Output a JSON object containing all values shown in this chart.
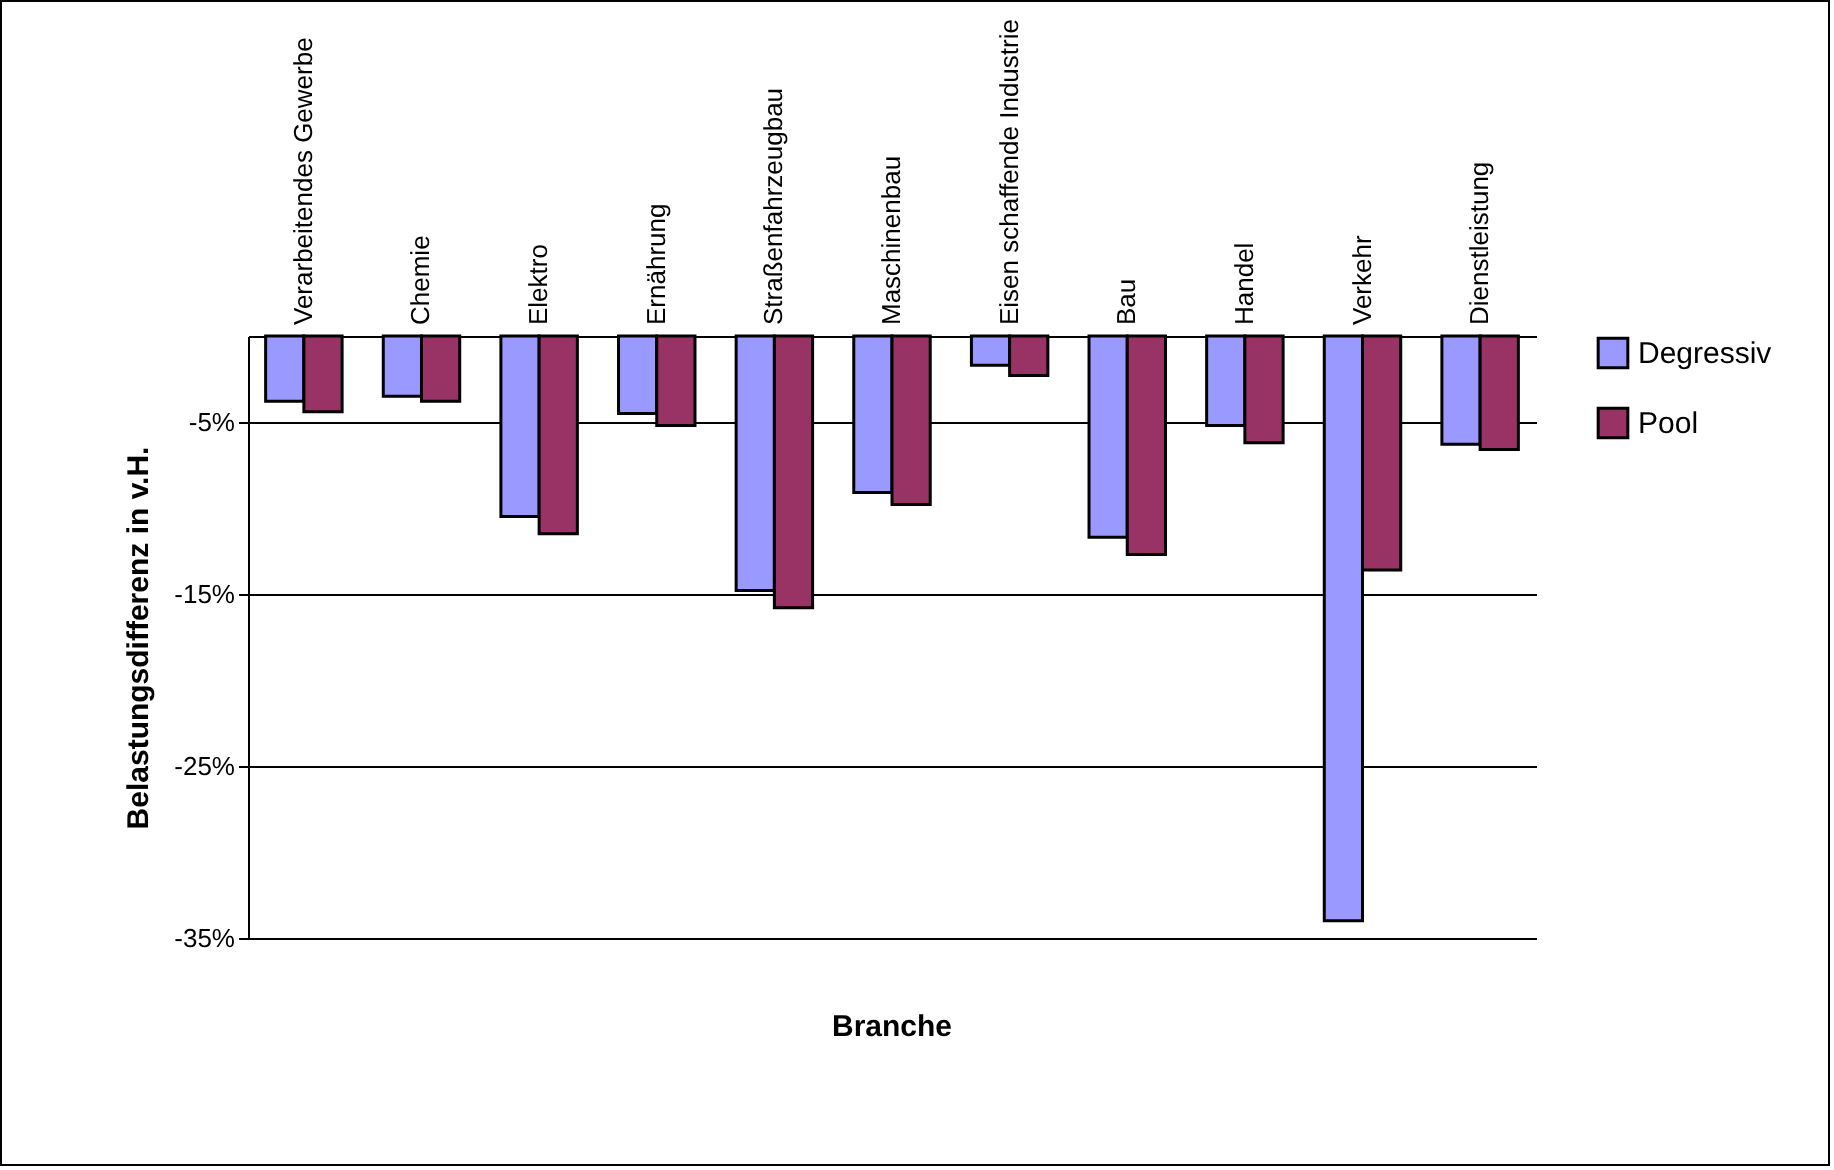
{
  "chart_data": {
    "type": "bar",
    "xlabel": "Branche",
    "ylabel": "Belastungsdifferenz in v.H.",
    "categories": [
      "Verarbeitendes\nGewerbe",
      "Chemie",
      "Elektro",
      "Ernährung",
      "Straßenfahrzeugbau",
      "Maschinenbau",
      "Eisen schaffende\nIndustrie",
      "Bau",
      "Handel",
      "Verkehr",
      "Dienstleistung"
    ],
    "series": [
      {
        "name": "Degressiv",
        "color": "#9999ff",
        "values": [
          -3.8,
          -3.5,
          -10.5,
          -4.5,
          -14.8,
          -9.1,
          -1.7,
          -11.7,
          -5.2,
          -34.0,
          -6.3
        ]
      },
      {
        "name": "Pool",
        "color": "#993366",
        "values": [
          -4.4,
          -3.8,
          -11.5,
          -5.2,
          -15.8,
          -9.8,
          -2.3,
          -12.7,
          -6.2,
          -13.6,
          -6.6
        ]
      }
    ],
    "ylim": [
      -35,
      0
    ],
    "yticks": [
      {
        "value": -5,
        "label": "-5%"
      },
      {
        "value": -15,
        "label": "-15%"
      },
      {
        "value": -25,
        "label": "-25%"
      },
      {
        "value": -35,
        "label": "-35%"
      }
    ],
    "grid": "y",
    "legend": "right"
  }
}
